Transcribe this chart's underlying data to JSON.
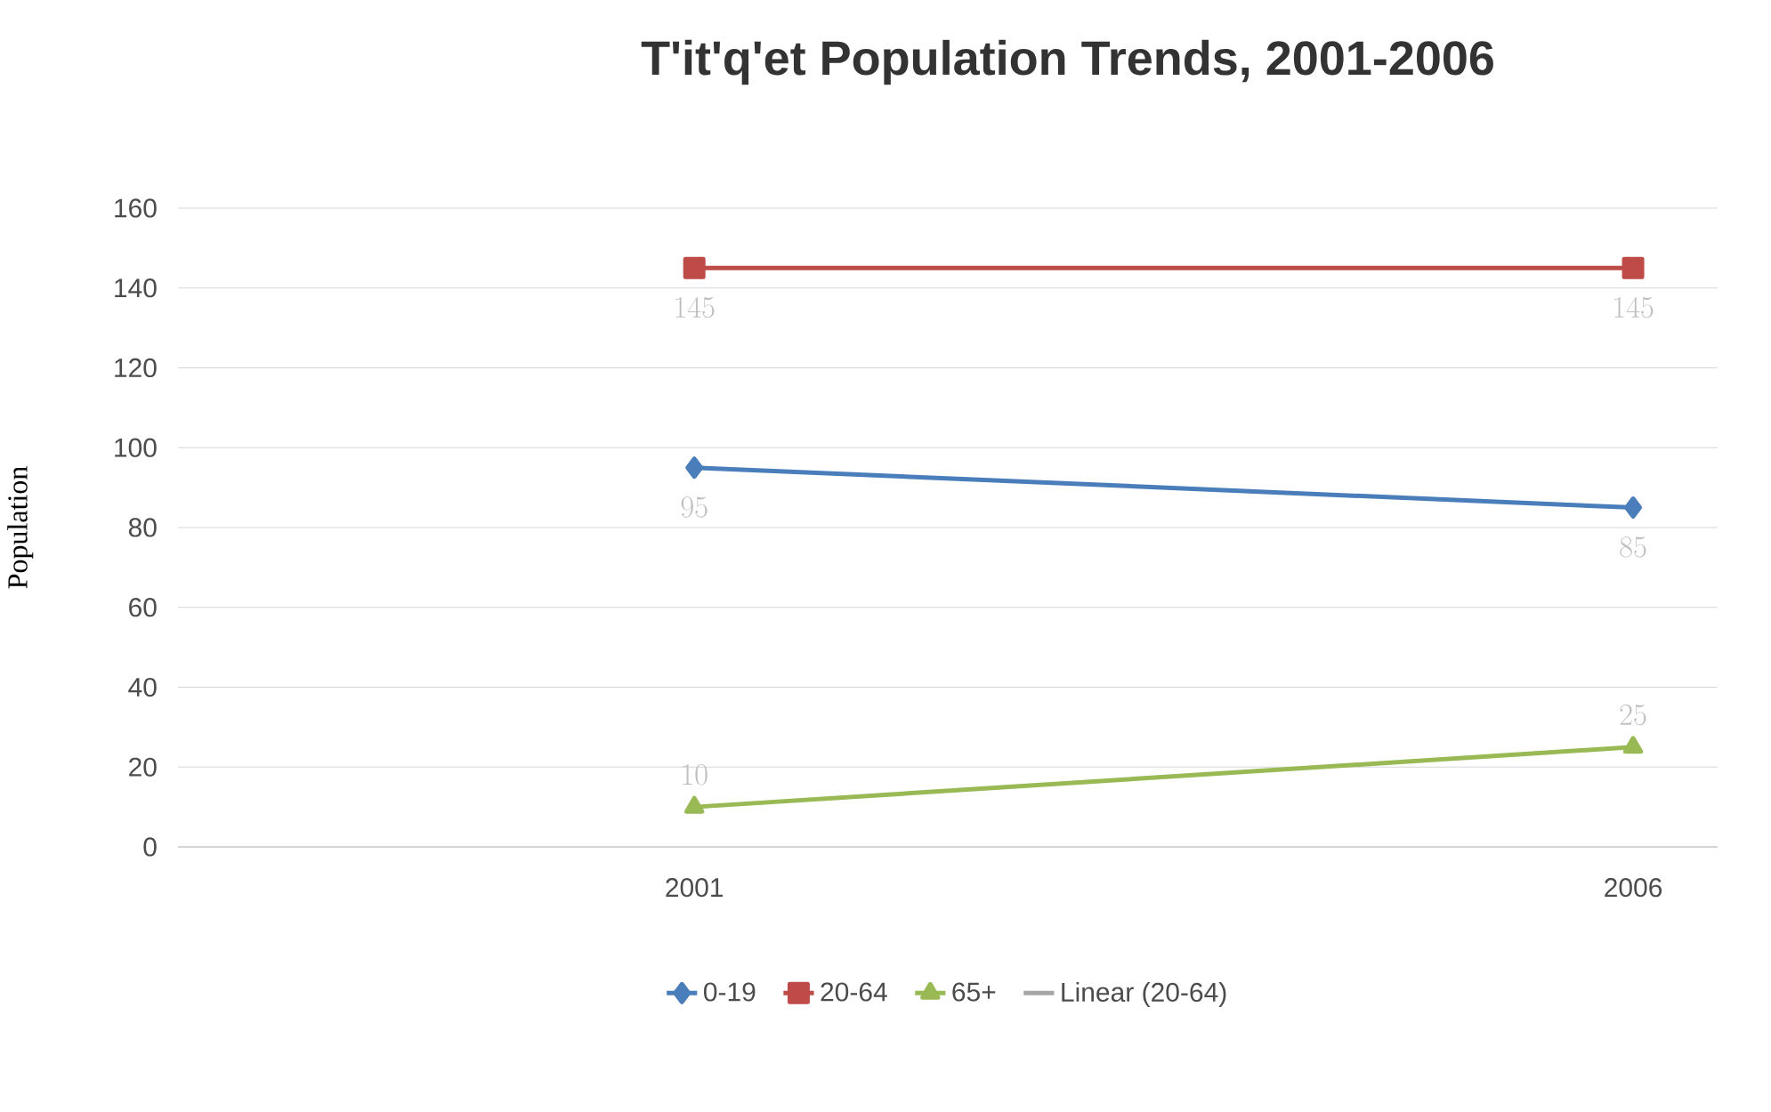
{
  "chart_data": {
    "type": "line",
    "title": "T'it'q'et Population Trends, 2001-2006",
    "ylabel": "Population",
    "categories": [
      "2001",
      "2006"
    ],
    "series": [
      {
        "name": "0-19",
        "color": "#4a7ebb",
        "values": [
          95,
          85
        ],
        "marker": "diamond"
      },
      {
        "name": "20-64",
        "color": "#be4b48",
        "values": [
          145,
          145
        ],
        "marker": "square"
      },
      {
        "name": "65+",
        "color": "#98b954",
        "values": [
          10,
          25
        ],
        "marker": "triangle"
      },
      {
        "name": "Linear (20-64)",
        "color": "#a6a6a6",
        "values": [
          null,
          null
        ],
        "marker": "none"
      }
    ],
    "ylim": [
      0,
      160
    ],
    "yticks": [
      0,
      20,
      40,
      60,
      80,
      100,
      120,
      140,
      160
    ],
    "grid": "y",
    "legend": "bottom",
    "data_labels": true,
    "line_style": "solid"
  }
}
